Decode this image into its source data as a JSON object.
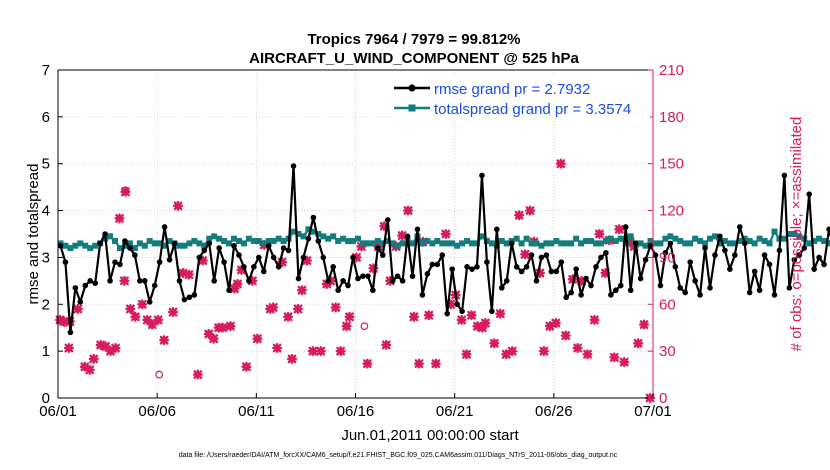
{
  "chart_data": {
    "type": "line",
    "title": "Tropics 7964 / 7979 = 99.812%",
    "subtitle": "AIRCRAFT_U_WIND_COMPONENT @ 525 hPa",
    "xlabel": "Jun.01,2011 00:00:00 start",
    "ylabel_left": "rmse and totalspread",
    "ylabel_right": "# of obs: o=possible; ×=assimilated",
    "footer": "data file: /Users/raeder/DAI/ATM_forcXX/CAM6_setup/f.e21.FHIST_BGC.f09_025.CAM6assim.011/Diags_NTrS_2011-06/obs_diag_output.nc",
    "xlim": [
      0,
      30
    ],
    "ylim_left": [
      0,
      7
    ],
    "ylim_right": [
      0,
      210
    ],
    "x_ticks": [
      {
        "value": 0,
        "label": "06/01"
      },
      {
        "value": 5,
        "label": "06/06"
      },
      {
        "value": 10,
        "label": "06/11"
      },
      {
        "value": 15,
        "label": "06/16"
      },
      {
        "value": 20,
        "label": "06/21"
      },
      {
        "value": 25,
        "label": "06/26"
      },
      {
        "value": 30,
        "label": "07/01"
      }
    ],
    "y_ticks_left": [
      "0",
      "1",
      "2",
      "3",
      "4",
      "5",
      "6",
      "7"
    ],
    "y_ticks_right": [
      "0",
      "30",
      "60",
      "90",
      "120",
      "150",
      "180",
      "210"
    ],
    "colors": {
      "rmse": "#000000",
      "spread": "#127d7d",
      "obs": "#d81b60",
      "legend_text": "#1a4ddc"
    },
    "series": [
      {
        "name": "rmse grand pr = 2.7932",
        "color": "#000000",
        "x_step": 0.25,
        "values": [
          3.25,
          2.9,
          1.4,
          2.35,
          2.05,
          2.4,
          2.5,
          2.45,
          3.3,
          3.5,
          2.5,
          2.9,
          2.85,
          3.35,
          3.2,
          3.05,
          2.5,
          2.5,
          2.05,
          2.4,
          2.9,
          3.65,
          2.95,
          3.3,
          2.5,
          2.1,
          2.15,
          2.2,
          3.0,
          3.15,
          3.3,
          2.5,
          3.2,
          2.9,
          2.3,
          3.25,
          3.05,
          2.8,
          2.5,
          2.8,
          3.0,
          2.7,
          3.25,
          3.0,
          2.8,
          3.2,
          3.15,
          4.95,
          2.55,
          3.0,
          3.4,
          3.85,
          3.35,
          3.0,
          2.5,
          2.8,
          2.3,
          2.5,
          2.4,
          3.0,
          2.55,
          2.6,
          2.6,
          2.3,
          3.2,
          3.05,
          3.8,
          2.5,
          2.6,
          2.5,
          3.45,
          2.6,
          3.6,
          2.2,
          2.65,
          2.85,
          2.85,
          3.05,
          1.8,
          2.75,
          2.0,
          1.85,
          2.8,
          2.75,
          2.8,
          4.75,
          2.9,
          1.85,
          3.6,
          2.35,
          2.5,
          3.3,
          2.8,
          2.7,
          2.8,
          3.05,
          2.5,
          3.0,
          3.05,
          2.7,
          2.7,
          2.9,
          2.15,
          2.25,
          2.75,
          2.2,
          2.55,
          2.4,
          2.8,
          3.0,
          3.1,
          2.2,
          2.3,
          2.4,
          3.65,
          2.3,
          3.3,
          2.55,
          2.95,
          3.25,
          3.05,
          2.4,
          3.1,
          3.3,
          2.8,
          2.35,
          2.25,
          2.9,
          2.5,
          2.2,
          3.2,
          2.35,
          3.05,
          3.45,
          3.15,
          2.75,
          3.05,
          3.65,
          3.3,
          2.25,
          2.7,
          2.3,
          3.05,
          2.85,
          2.2,
          3.15,
          4.75,
          2.35,
          2.95,
          3.05,
          3.2,
          4.35,
          2.75,
          3.0,
          2.85,
          3.6,
          3.2,
          3.05
        ]
      },
      {
        "name": "totalspread grand pr = 3.3574",
        "color": "#127d7d",
        "x_step": 0.25,
        "values": [
          3.3,
          3.25,
          3.2,
          3.25,
          3.3,
          3.25,
          3.2,
          3.25,
          3.3,
          3.4,
          3.45,
          3.35,
          3.2,
          3.25,
          3.3,
          3.2,
          3.3,
          3.25,
          3.35,
          3.3,
          3.3,
          3.25,
          3.35,
          3.3,
          3.25,
          3.25,
          3.3,
          3.35,
          3.3,
          3.25,
          3.4,
          3.45,
          3.4,
          3.35,
          3.3,
          3.4,
          3.35,
          3.3,
          3.4,
          3.35,
          3.35,
          3.3,
          3.35,
          3.35,
          3.4,
          3.35,
          3.4,
          3.55,
          3.5,
          3.45,
          3.6,
          3.55,
          3.5,
          3.45,
          3.4,
          3.45,
          3.35,
          3.4,
          3.35,
          3.35,
          3.4,
          3.3,
          3.3,
          3.3,
          3.35,
          3.3,
          3.35,
          3.3,
          3.25,
          3.3,
          3.35,
          3.3,
          3.45,
          3.3,
          3.35,
          3.3,
          3.35,
          3.3,
          3.3,
          3.3,
          3.25,
          3.3,
          3.35,
          3.3,
          3.3,
          3.45,
          3.35,
          3.3,
          3.25,
          3.35,
          3.3,
          3.35,
          3.4,
          3.3,
          3.4,
          3.3,
          3.3,
          3.25,
          3.3,
          3.3,
          3.35,
          3.3,
          3.3,
          3.3,
          3.4,
          3.3,
          3.35,
          3.35,
          3.3,
          3.3,
          3.35,
          3.4,
          3.35,
          3.4,
          3.3,
          3.45,
          3.3,
          3.3,
          3.25,
          3.35,
          3.3,
          3.3,
          3.4,
          3.45,
          3.4,
          3.35,
          3.3,
          3.3,
          3.4,
          3.35,
          3.3,
          3.4,
          3.45,
          3.3,
          3.35,
          3.3,
          3.3,
          3.35,
          3.4,
          3.35,
          3.3,
          3.4,
          3.35,
          3.3,
          3.55,
          3.4,
          3.4,
          3.5,
          3.5,
          3.45,
          3.4,
          3.3,
          3.35,
          3.4,
          3.35,
          3.3
        ]
      }
    ],
    "obs_possible": {
      "name": "# of obs possible (o)",
      "axis": "right",
      "points": [
        [
          0.1,
          50
        ],
        [
          0.35,
          48
        ],
        [
          3.4,
          133
        ],
        [
          5.1,
          15
        ],
        [
          15.45,
          46
        ]
      ]
    },
    "obs_assimilated": {
      "name": "# of obs assimilated (×)",
      "axis": "right",
      "points": [
        [
          0.1,
          50
        ],
        [
          0.3,
          49
        ],
        [
          0.6,
          49
        ],
        [
          0.55,
          32
        ],
        [
          1.0,
          57
        ],
        [
          1.35,
          20
        ],
        [
          1.6,
          18
        ],
        [
          1.8,
          25
        ],
        [
          2.15,
          34
        ],
        [
          2.4,
          33
        ],
        [
          2.65,
          30
        ],
        [
          2.9,
          32
        ],
        [
          3.1,
          115
        ],
        [
          3.35,
          75
        ],
        [
          3.4,
          132
        ],
        [
          3.65,
          57
        ],
        [
          3.9,
          52
        ],
        [
          4.25,
          60
        ],
        [
          4.5,
          50
        ],
        [
          4.75,
          47
        ],
        [
          5.05,
          50
        ],
        [
          5.35,
          37
        ],
        [
          5.8,
          55
        ],
        [
          6.05,
          123
        ],
        [
          6.3,
          80
        ],
        [
          6.6,
          79
        ],
        [
          7.05,
          15
        ],
        [
          7.3,
          88
        ],
        [
          7.6,
          41
        ],
        [
          7.85,
          38
        ],
        [
          8.1,
          45
        ],
        [
          8.3,
          45
        ],
        [
          8.7,
          46
        ],
        [
          8.9,
          70
        ],
        [
          9.05,
          73
        ],
        [
          9.25,
          82
        ],
        [
          9.5,
          20
        ],
        [
          9.8,
          75
        ],
        [
          10.05,
          38
        ],
        [
          10.4,
          98
        ],
        [
          10.7,
          57
        ],
        [
          10.85,
          58
        ],
        [
          11.05,
          32
        ],
        [
          11.3,
          87
        ],
        [
          11.6,
          52
        ],
        [
          11.8,
          25
        ],
        [
          12.1,
          57
        ],
        [
          12.3,
          69
        ],
        [
          12.55,
          88
        ],
        [
          12.85,
          30
        ],
        [
          13.25,
          30
        ],
        [
          13.55,
          73
        ],
        [
          13.75,
          75
        ],
        [
          14.0,
          58
        ],
        [
          14.25,
          30
        ],
        [
          14.55,
          46
        ],
        [
          14.7,
          52
        ],
        [
          15.05,
          90
        ],
        [
          15.3,
          97
        ],
        [
          15.6,
          22
        ],
        [
          15.9,
          83
        ],
        [
          16.15,
          97
        ],
        [
          16.45,
          110
        ],
        [
          16.55,
          34
        ],
        [
          16.75,
          75
        ],
        [
          17.05,
          97
        ],
        [
          17.35,
          104
        ],
        [
          17.65,
          120
        ],
        [
          17.95,
          52
        ],
        [
          18.2,
          22
        ],
        [
          18.4,
          100
        ],
        [
          18.7,
          53
        ],
        [
          19.05,
          22
        ],
        [
          19.55,
          105
        ],
        [
          19.8,
          60
        ],
        [
          20.05,
          66
        ],
        [
          20.35,
          50
        ],
        [
          20.6,
          28
        ],
        [
          20.85,
          53
        ],
        [
          21.15,
          46
        ],
        [
          21.4,
          45
        ],
        [
          21.55,
          48
        ],
        [
          22.0,
          35
        ],
        [
          22.3,
          54
        ],
        [
          22.6,
          28
        ],
        [
          22.9,
          30
        ],
        [
          23.25,
          117
        ],
        [
          23.55,
          92
        ],
        [
          23.8,
          120
        ],
        [
          24.0,
          100
        ],
        [
          24.3,
          80
        ],
        [
          24.5,
          30
        ],
        [
          24.8,
          46
        ],
        [
          25.1,
          48
        ],
        [
          25.35,
          150
        ],
        [
          25.6,
          40
        ],
        [
          25.95,
          76
        ],
        [
          26.2,
          32
        ],
        [
          26.4,
          75
        ],
        [
          26.7,
          28
        ],
        [
          27.05,
          50
        ],
        [
          27.3,
          105
        ],
        [
          27.6,
          80
        ],
        [
          27.8,
          101
        ],
        [
          28.05,
          26
        ],
        [
          28.3,
          108
        ],
        [
          28.55,
          23
        ],
        [
          28.85,
          100
        ],
        [
          29.05,
          97
        ],
        [
          29.25,
          35
        ],
        [
          29.55,
          47
        ],
        [
          29.85,
          0
        ]
      ]
    }
  }
}
